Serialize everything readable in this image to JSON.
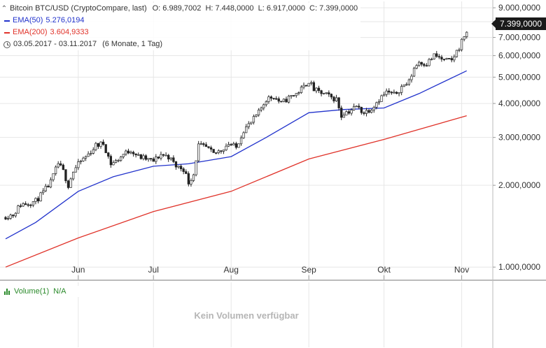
{
  "legend": {
    "main": {
      "label": "Bitcoin BTC/USD (CryptoCompare, last)",
      "ohlc": "O: 6.989,7002  H: 7.448,0000  L: 6.917,0000  C: 7.399,0000"
    },
    "ema50": {
      "label": "EMA(50)",
      "value": "5.276,0194",
      "color": "#2233cc"
    },
    "ema200": {
      "label": "EMA(200)",
      "value": "3.604,9333",
      "color": "#e0332a"
    },
    "range": {
      "label": "03.05.2017 - 03.11.2017",
      "detail": "(6 Monate, 1 Tag)"
    },
    "icons": {
      "collapse": "chevron-up-icon",
      "period": "clock-icon",
      "volume": "bar-chart-icon"
    }
  },
  "last_price": "7.399,0000",
  "volume": {
    "label": "Volume(1)",
    "value": "N/A",
    "empty_text": "Kein Volumen verfügbar",
    "color": "#2a8a2a"
  },
  "chart_data": {
    "type": "candlestick",
    "y_scale": "log",
    "ylim": [
      900,
      9500
    ],
    "y_ticks": [
      {
        "value": 1000,
        "label": "1.000,0000"
      },
      {
        "value": 2000,
        "label": "2.000,0000"
      },
      {
        "value": 3000,
        "label": "3.000,0000"
      },
      {
        "value": 4000,
        "label": "4.000,0000"
      },
      {
        "value": 5000,
        "label": "5.000,0000"
      },
      {
        "value": 6000,
        "label": "6.000,0000"
      },
      {
        "value": 7000,
        "label": "7.000,0000"
      },
      {
        "value": 8000,
        "label": "8.000,0000"
      },
      {
        "value": 9000,
        "label": "9.000,0000"
      }
    ],
    "x_range": [
      "2017-05-03",
      "2017-11-03"
    ],
    "x_ticks": [
      {
        "date": "2017-06-01",
        "label": "Jun"
      },
      {
        "date": "2017-07-01",
        "label": "Jul"
      },
      {
        "date": "2017-08-01",
        "label": "Aug"
      },
      {
        "date": "2017-09-01",
        "label": "Sep"
      },
      {
        "date": "2017-10-01",
        "label": "Okt"
      },
      {
        "date": "2017-11-01",
        "label": "Nov"
      }
    ],
    "grid": true,
    "up_color": "#ffffff",
    "down_color": "#222222",
    "close_points": [
      [
        "2017-05-03",
        1540
      ],
      [
        "2017-05-06",
        1560
      ],
      [
        "2017-05-09",
        1700
      ],
      [
        "2017-05-12",
        1720
      ],
      [
        "2017-05-15",
        1750
      ],
      [
        "2017-05-18",
        1880
      ],
      [
        "2017-05-21",
        2050
      ],
      [
        "2017-05-24",
        2400
      ],
      [
        "2017-05-26",
        2250
      ],
      [
        "2017-05-28",
        2000
      ],
      [
        "2017-05-30",
        2250
      ],
      [
        "2017-06-02",
        2450
      ],
      [
        "2017-06-05",
        2600
      ],
      [
        "2017-06-08",
        2800
      ],
      [
        "2017-06-11",
        2850
      ],
      [
        "2017-06-14",
        2400
      ],
      [
        "2017-06-16",
        2450
      ],
      [
        "2017-06-19",
        2600
      ],
      [
        "2017-06-22",
        2700
      ],
      [
        "2017-06-25",
        2550
      ],
      [
        "2017-06-28",
        2500
      ],
      [
        "2017-07-01",
        2450
      ],
      [
        "2017-07-04",
        2600
      ],
      [
        "2017-07-07",
        2550
      ],
      [
        "2017-07-10",
        2350
      ],
      [
        "2017-07-13",
        2300
      ],
      [
        "2017-07-15",
        2050
      ],
      [
        "2017-07-17",
        2200
      ],
      [
        "2017-07-19",
        2800
      ],
      [
        "2017-07-22",
        2750
      ],
      [
        "2017-07-25",
        2600
      ],
      [
        "2017-07-28",
        2700
      ],
      [
        "2017-07-31",
        2850
      ],
      [
        "2017-08-03",
        2750
      ],
      [
        "2017-08-06",
        3200
      ],
      [
        "2017-08-09",
        3400
      ],
      [
        "2017-08-12",
        3700
      ],
      [
        "2017-08-15",
        4150
      ],
      [
        "2017-08-18",
        4250
      ],
      [
        "2017-08-21",
        4000
      ],
      [
        "2017-08-24",
        4200
      ],
      [
        "2017-08-27",
        4350
      ],
      [
        "2017-08-30",
        4600
      ],
      [
        "2017-09-01",
        4850
      ],
      [
        "2017-09-03",
        4500
      ],
      [
        "2017-09-05",
        4400
      ],
      [
        "2017-09-08",
        4300
      ],
      [
        "2017-09-10",
        4200
      ],
      [
        "2017-09-12",
        4150
      ],
      [
        "2017-09-14",
        3600
      ],
      [
        "2017-09-15",
        3700
      ],
      [
        "2017-09-17",
        3750
      ],
      [
        "2017-09-20",
        3900
      ],
      [
        "2017-09-23",
        3700
      ],
      [
        "2017-09-26",
        3850
      ],
      [
        "2017-09-29",
        4150
      ],
      [
        "2017-10-02",
        4400
      ],
      [
        "2017-10-05",
        4300
      ],
      [
        "2017-10-08",
        4600
      ],
      [
        "2017-10-11",
        4800
      ],
      [
        "2017-10-13",
        5400
      ],
      [
        "2017-10-15",
        5700
      ],
      [
        "2017-10-18",
        5600
      ],
      [
        "2017-10-21",
        6000
      ],
      [
        "2017-10-23",
        5900
      ],
      [
        "2017-10-25",
        5750
      ],
      [
        "2017-10-28",
        5750
      ],
      [
        "2017-10-31",
        6450
      ],
      [
        "2017-11-02",
        7100
      ],
      [
        "2017-11-03",
        7399
      ]
    ],
    "series": [
      {
        "name": "EMA(50)",
        "color": "#2233cc",
        "values": [
          [
            "2017-05-03",
            1270
          ],
          [
            "2017-05-15",
            1460
          ],
          [
            "2017-06-01",
            1900
          ],
          [
            "2017-06-15",
            2150
          ],
          [
            "2017-07-01",
            2350
          ],
          [
            "2017-07-15",
            2400
          ],
          [
            "2017-08-01",
            2550
          ],
          [
            "2017-08-15",
            3000
          ],
          [
            "2017-09-01",
            3700
          ],
          [
            "2017-09-15",
            3800
          ],
          [
            "2017-10-01",
            3850
          ],
          [
            "2017-10-15",
            4350
          ],
          [
            "2017-11-03",
            5276
          ]
        ]
      },
      {
        "name": "EMA(200)",
        "color": "#e0332a",
        "values": [
          [
            "2017-05-03",
            1000
          ],
          [
            "2017-06-01",
            1280
          ],
          [
            "2017-07-01",
            1600
          ],
          [
            "2017-08-01",
            1900
          ],
          [
            "2017-09-01",
            2500
          ],
          [
            "2017-10-01",
            2950
          ],
          [
            "2017-11-03",
            3605
          ]
        ]
      }
    ]
  }
}
